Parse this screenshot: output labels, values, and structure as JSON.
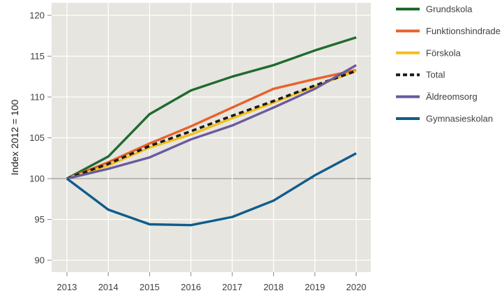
{
  "chart_data": {
    "type": "line",
    "title": "",
    "xlabel": "",
    "ylabel": "Index 2012 = 100",
    "x": [
      "2013",
      "2014",
      "2015",
      "2016",
      "2017",
      "2018",
      "2019",
      "2020"
    ],
    "xlim": [
      2013,
      2020
    ],
    "ylim": [
      88,
      122
    ],
    "yticks": [
      90,
      95,
      100,
      105,
      110,
      115,
      120
    ],
    "grid": true,
    "reference_line": 100,
    "legend_position": "right",
    "series": [
      {
        "name": "Grundskola",
        "color": "#1e6b2e",
        "dashed": false,
        "values": [
          100,
          102.7,
          107.9,
          110.8,
          112.5,
          113.9,
          115.7,
          117.3
        ]
      },
      {
        "name": "Funktionshindrade",
        "color": "#e8612c",
        "dashed": false,
        "values": [
          100,
          102.0,
          104.3,
          106.4,
          108.7,
          111.0,
          112.2,
          113.3
        ]
      },
      {
        "name": "Förskola",
        "color": "#f2bf1c",
        "dashed": false,
        "values": [
          100,
          101.6,
          103.8,
          105.4,
          107.4,
          109.3,
          111.3,
          113.2
        ]
      },
      {
        "name": "Total",
        "color": "#1a1a1a",
        "dashed": true,
        "values": [
          100,
          101.8,
          104.0,
          105.8,
          107.7,
          109.5,
          111.4,
          113.2
        ]
      },
      {
        "name": "Äldreomsorg",
        "color": "#6a5a9c",
        "dashed": false,
        "values": [
          100,
          101.2,
          102.6,
          104.8,
          106.5,
          108.7,
          111.0,
          113.9
        ]
      },
      {
        "name": "Gymnasieskolan",
        "color": "#0f5c8c",
        "dashed": false,
        "values": [
          100,
          96.2,
          94.4,
          94.3,
          95.3,
          97.3,
          100.4,
          103.1
        ]
      }
    ]
  }
}
